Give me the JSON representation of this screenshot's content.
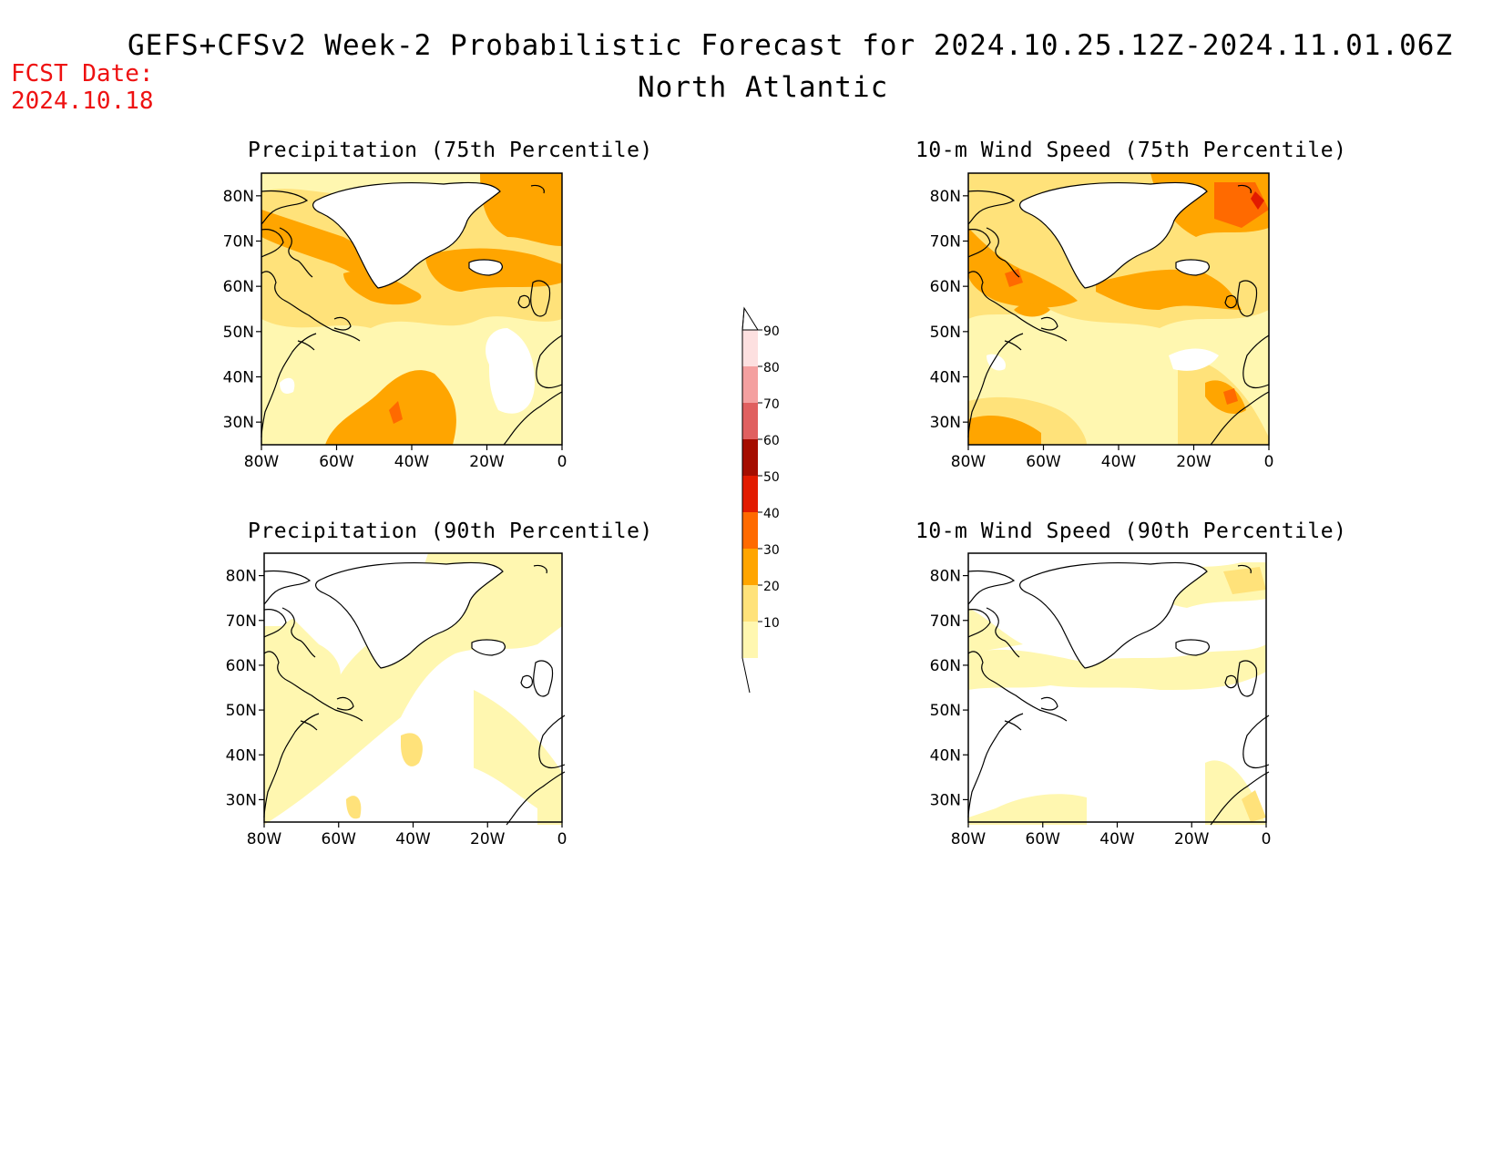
{
  "header": {
    "title": "GEFS+CFSv2 Week-2 Probabilistic Forecast for 2024.10.25.12Z-2024.11.01.06Z",
    "subtitle": "North Atlantic",
    "fcst_label": "FCST Date:",
    "fcst_date": "2024.10.18"
  },
  "panels": [
    {
      "id": "p75",
      "title": "Precipitation (75th Percentile)"
    },
    {
      "id": "p90",
      "title": "Precipitation (90th Percentile)"
    },
    {
      "id": "w75",
      "title": "10-m Wind Speed (75th Percentile)"
    },
    {
      "id": "w90",
      "title": "10-m Wind Speed (90th Percentile)"
    }
  ],
  "axes": {
    "lat_labels": [
      "80N",
      "70N",
      "60N",
      "50N",
      "40N",
      "30N"
    ],
    "lon_labels": [
      "80W",
      "60W",
      "40W",
      "20W",
      "0"
    ]
  },
  "colorbar": {
    "labels": [
      "90",
      "80",
      "70",
      "60",
      "50",
      "40",
      "30",
      "20",
      "10"
    ],
    "colors": {
      "c10": "#fff7b0",
      "c20": "#ffe27a",
      "c30": "#ffa500",
      "c40": "#ff6a00",
      "c50": "#e21b00",
      "c60": "#a50d00",
      "c70": "#e06060",
      "c80": "#f4a0a0",
      "c90": "#fde0e0"
    }
  }
}
